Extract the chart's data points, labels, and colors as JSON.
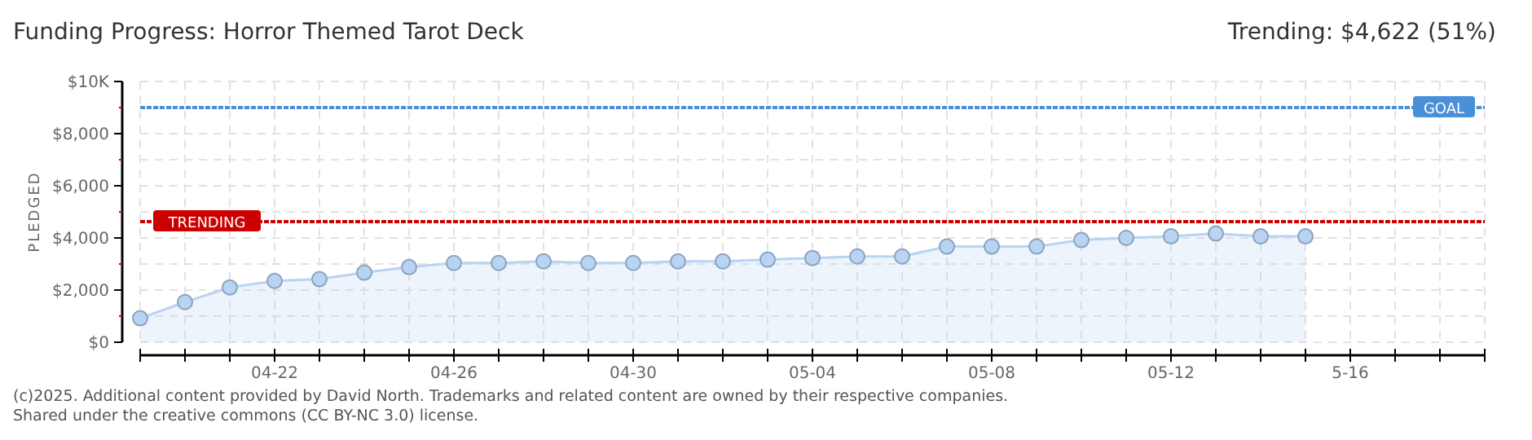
{
  "chart_data": {
    "type": "area",
    "title": "Funding Progress: Horror Themed Tarot Deck",
    "ylabel": "PLEDGED",
    "x": [
      "--04-19",
      "--04-20",
      "--04-21",
      "--04-22",
      "--04-23",
      "--04-24",
      "--04-25",
      "--04-26",
      "--04-27",
      "--04-28",
      "--04-29",
      "--04-30",
      "--05-01",
      "--05-02",
      "--05-03",
      "--05-04",
      "--05-05",
      "--05-06",
      "--05-07",
      "--05-08",
      "--05-09",
      "--05-10",
      "--05-11",
      "--05-12",
      "--05-13",
      "--05-14",
      "--05-15"
    ],
    "series": [
      {
        "color": "#b8d4f2",
        "values": [
          920,
          1540,
          2100,
          2350,
          2420,
          2670,
          2880,
          3040,
          3040,
          3100,
          3040,
          3040,
          3100,
          3100,
          3170,
          3230,
          3290,
          3290,
          3670,
          3670,
          3670,
          3920,
          4000,
          4060,
          4170,
          4060,
          4060
        ]
      }
    ],
    "xlim": [
      "--04-19",
      "--05-19"
    ],
    "xticks": [
      {
        "value": "--04-19",
        "label": null
      },
      {
        "value": "--04-20",
        "label": null
      },
      {
        "value": "--04-21",
        "label": null
      },
      {
        "value": "--04-22",
        "label": "04-22"
      },
      {
        "value": "--04-23",
        "label": null
      },
      {
        "value": "--04-24",
        "label": null
      },
      {
        "value": "--04-25",
        "label": null
      },
      {
        "value": "--04-26",
        "label": "04-26"
      },
      {
        "value": "--04-27",
        "label": null
      },
      {
        "value": "--04-28",
        "label": null
      },
      {
        "value": "--04-29",
        "label": null
      },
      {
        "value": "--04-30",
        "label": "04-30"
      },
      {
        "value": "--05-01",
        "label": null
      },
      {
        "value": "--05-02",
        "label": null
      },
      {
        "value": "--05-03",
        "label": null
      },
      {
        "value": "--05-04",
        "label": "05-04"
      },
      {
        "value": "--05-05",
        "label": null
      },
      {
        "value": "--05-06",
        "label": null
      },
      {
        "value": "--05-07",
        "label": null
      },
      {
        "value": "--05-08",
        "label": "05-08"
      },
      {
        "value": "--05-09",
        "label": null
      },
      {
        "value": "--05-10",
        "label": null
      },
      {
        "value": "--05-11",
        "label": null
      },
      {
        "value": "--05-12",
        "label": "05-12"
      },
      {
        "value": "--05-13",
        "label": null
      },
      {
        "value": "--05-14",
        "label": null
      },
      {
        "value": "--05-15",
        "label": null
      },
      {
        "value": "--05-16",
        "label": "5-16"
      },
      {
        "value": "--05-17",
        "label": null
      },
      {
        "value": "--05-18",
        "label": null
      },
      {
        "value": "--05-19",
        "label": null
      }
    ],
    "ylim": [
      0,
      10000
    ],
    "yticks": [
      {
        "value": 0,
        "label": "$0"
      },
      {
        "value": 1000,
        "label": null
      },
      {
        "value": 2000,
        "label": "$2,000"
      },
      {
        "value": 3000,
        "label": null
      },
      {
        "value": 4000,
        "label": "$4,000"
      },
      {
        "value": 5000,
        "label": null
      },
      {
        "value": 6000,
        "label": "$6,000"
      },
      {
        "value": 7000,
        "label": null
      },
      {
        "value": 8000,
        "label": "$8,000"
      },
      {
        "value": 9000,
        "label": null
      },
      {
        "value": 10000,
        "label": "$10K"
      }
    ],
    "grid": true,
    "marker": "circle",
    "ref_lines": [
      {
        "axis": "y",
        "value": 9000,
        "label": "GOAL",
        "color": "#4a90d9",
        "line_style": "dotted"
      },
      {
        "axis": "y",
        "value": 4622,
        "label": "TRENDING",
        "color": "#cc0000",
        "line_style": "dotted"
      }
    ],
    "annotations": [
      "Trending: $4,622 (51%)",
      "(c)2025. Additional content provided by David North. Trademarks and related content are owned by their respective companies.",
      "Shared under the creative commons (CC BY-NC 3.0) license."
    ]
  }
}
